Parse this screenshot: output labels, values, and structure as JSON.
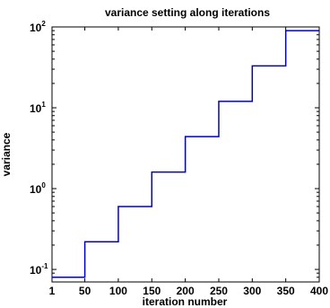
{
  "chart_data": {
    "type": "line",
    "title": "variance setting along iterations",
    "xlabel": "iteration number",
    "ylabel": "variance",
    "xlim": [
      1,
      400
    ],
    "ylim": [
      0.07,
      100
    ],
    "yscale": "log",
    "grid": false,
    "x_ticks": [
      "1",
      "50",
      "100",
      "150",
      "200",
      "250",
      "300",
      "350",
      "400"
    ],
    "y_ticks": [
      {
        "base": "10",
        "exp": "-1"
      },
      {
        "base": "10",
        "exp": "0"
      },
      {
        "base": "10",
        "exp": "1"
      },
      {
        "base": "10",
        "exp": "2"
      }
    ],
    "series": [
      {
        "color": "#0000cc",
        "steps": [
          {
            "x_start": 1,
            "x_end": 50,
            "y": 0.08
          },
          {
            "x_start": 50,
            "x_end": 100,
            "y": 0.22
          },
          {
            "x_start": 100,
            "x_end": 150,
            "y": 0.6
          },
          {
            "x_start": 150,
            "x_end": 200,
            "y": 1.6
          },
          {
            "x_start": 200,
            "x_end": 250,
            "y": 4.4
          },
          {
            "x_start": 250,
            "x_end": 300,
            "y": 12
          },
          {
            "x_start": 300,
            "x_end": 350,
            "y": 33
          },
          {
            "x_start": 350,
            "x_end": 400,
            "y": 90
          }
        ]
      }
    ]
  }
}
